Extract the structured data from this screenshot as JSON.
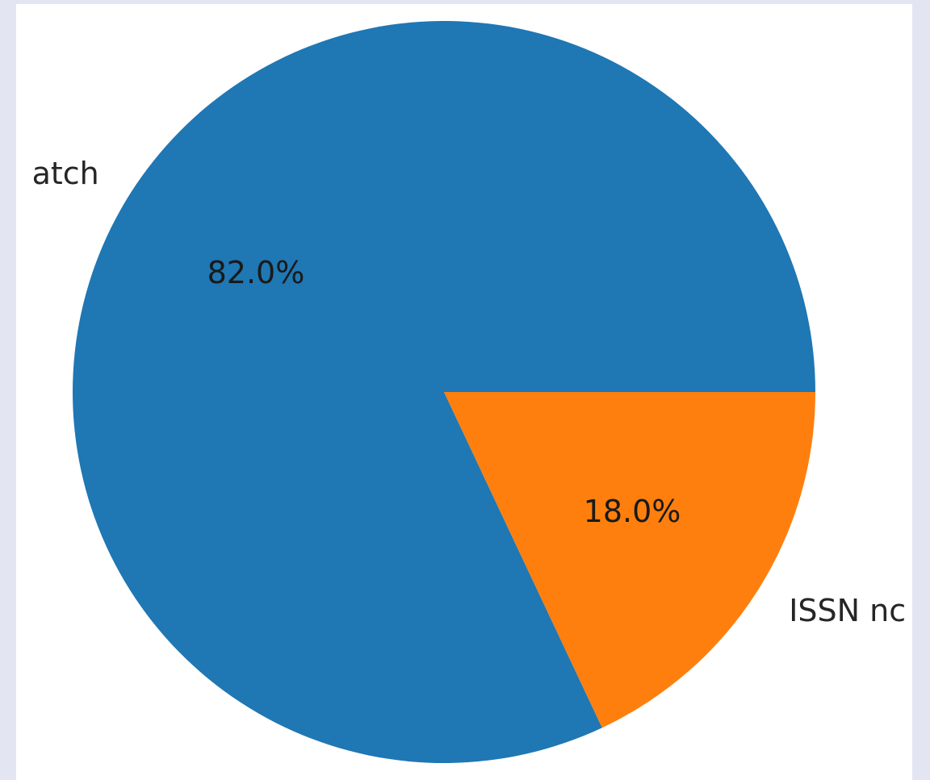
{
  "chart_data": {
    "type": "pie",
    "title": "",
    "slices": [
      {
        "label": "atch",
        "value": 82.0,
        "pct_label": "82.0%",
        "color": "#1f77b4"
      },
      {
        "label": "ISSN nc",
        "value": 18.0,
        "pct_label": "18.0%",
        "color": "#ff7f0e"
      }
    ],
    "start_angle_deg": 0,
    "direction": "counterclockwise",
    "legend": "none"
  }
}
